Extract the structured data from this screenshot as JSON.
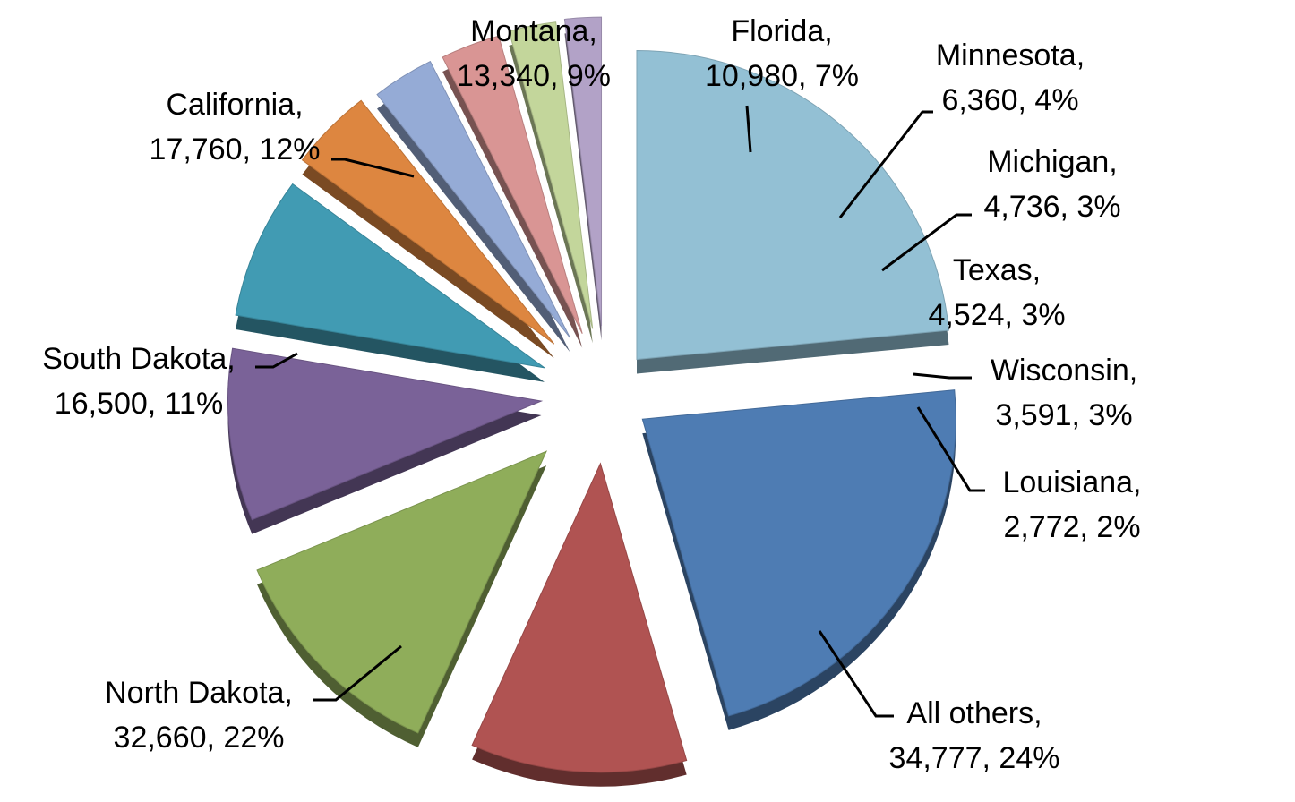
{
  "chart_data": {
    "type": "pie",
    "title": "",
    "three_d": true,
    "exploded": true,
    "slices": [
      {
        "name": "All others",
        "value": 34777,
        "pct": "24%",
        "color": "#93c0d4",
        "value_label": "34,777"
      },
      {
        "name": "North Dakota",
        "value": 32660,
        "pct": "22%",
        "color": "#4e7cb3",
        "value_label": "32,660"
      },
      {
        "name": "South Dakota",
        "value": 16500,
        "pct": "11%",
        "color": "#b05352",
        "value_label": "16,500"
      },
      {
        "name": "California",
        "value": 17760,
        "pct": "12%",
        "color": "#8fad5a",
        "value_label": "17,760"
      },
      {
        "name": "Montana",
        "value": 13340,
        "pct": "9%",
        "color": "#7a6298",
        "value_label": "13,340"
      },
      {
        "name": "Florida",
        "value": 10980,
        "pct": "7%",
        "color": "#419bb3",
        "value_label": "10,980"
      },
      {
        "name": "Minnesota",
        "value": 6360,
        "pct": "4%",
        "color": "#dd8640",
        "value_label": "6,360"
      },
      {
        "name": "Michigan",
        "value": 4736,
        "pct": "3%",
        "color": "#95abd6",
        "value_label": "4,736"
      },
      {
        "name": "Texas",
        "value": 4524,
        "pct": "3%",
        "color": "#d99594",
        "value_label": "4,524"
      },
      {
        "name": "Wisconsin",
        "value": 3591,
        "pct": "3%",
        "color": "#c3d69b",
        "value_label": "3,591"
      },
      {
        "name": "Louisiana",
        "value": 2772,
        "pct": "2%",
        "color": "#b2a2c7",
        "value_label": "2,772"
      }
    ]
  },
  "labels": [
    {
      "line1": "All others,",
      "line2": "34,777, 24%"
    },
    {
      "line1": "North Dakota,",
      "line2": "32,660, 22%"
    },
    {
      "line1": "South Dakota,",
      "line2": "16,500, 11%"
    },
    {
      "line1": "California,",
      "line2": "17,760, 12%"
    },
    {
      "line1": "Montana,",
      "line2": "13,340, 9%"
    },
    {
      "line1": "Florida,",
      "line2": "10,980, 7%"
    },
    {
      "line1": "Minnesota,",
      "line2": "6,360, 4%"
    },
    {
      "line1": "Michigan,",
      "line2": "4,736, 3%"
    },
    {
      "line1": "Texas,",
      "line2": "4,524, 3%"
    },
    {
      "line1": "Wisconsin,",
      "line2": "3,591, 3%"
    },
    {
      "line1": "Louisiana,",
      "line2": "2,772, 2%"
    }
  ]
}
